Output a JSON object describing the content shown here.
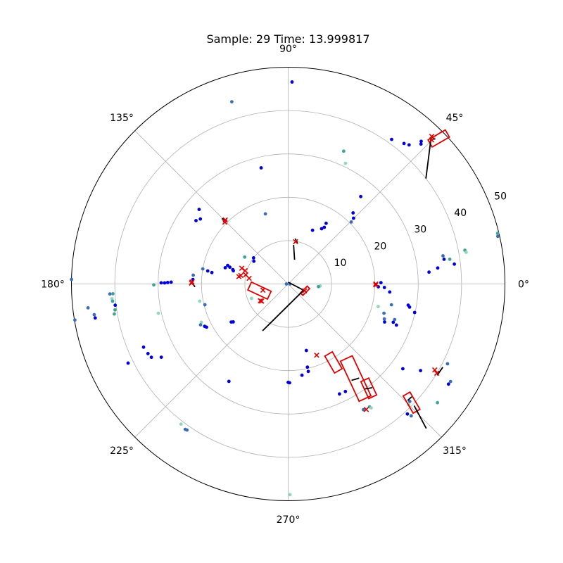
{
  "chart_data": {
    "type": "scatter",
    "projection": "polar",
    "title": "Sample: 29 Time: 13.999817",
    "r_range": [
      0,
      50
    ],
    "r_ticks": [
      10,
      20,
      30,
      40,
      50
    ],
    "r_tick_labels": [
      "10",
      "20",
      "30",
      "40",
      "50"
    ],
    "theta_ticks": [
      0,
      45,
      90,
      135,
      180,
      225,
      270,
      315
    ],
    "theta_tick_labels": [
      "0°",
      "45°",
      "90°",
      "135°",
      "180°",
      "225°",
      "270°",
      "315°"
    ],
    "grid": true,
    "colors": {
      "point_blue": "#0000dd",
      "point_steel": "#3a6fb8",
      "point_teal": "#3fa39a",
      "point_mint": "#8fd8b8",
      "detection": "#e00000",
      "box": "#e00000",
      "line": "#000000",
      "grid": "#b0b0b0"
    },
    "points": [
      {
        "r": 46.6,
        "t": 88.9,
        "c": "blue"
      },
      {
        "r": 44.0,
        "t": 107.2,
        "c": "steel"
      },
      {
        "r": 45.0,
        "t": 47.0,
        "c": "blue"
      },
      {
        "r": 44.5,
        "t": 46.5,
        "c": "blue"
      },
      {
        "r": 42.5,
        "t": 49.0,
        "c": "blue"
      },
      {
        "r": 42.0,
        "t": 50.5,
        "c": "blue"
      },
      {
        "r": 41.0,
        "t": 54.4,
        "c": "blue"
      },
      {
        "r": 33.2,
        "t": 67.3,
        "c": "teal"
      },
      {
        "r": 30.8,
        "t": 64.6,
        "c": "mint"
      },
      {
        "r": 26.2,
        "t": 50.3,
        "c": "blue"
      },
      {
        "r": 22.2,
        "t": 47.6,
        "c": "blue"
      },
      {
        "r": 21.4,
        "t": 45.2,
        "c": "blue"
      },
      {
        "r": 20.4,
        "t": 44.5,
        "c": "steel"
      },
      {
        "r": 16.5,
        "t": 58.0,
        "c": "blue"
      },
      {
        "r": 15.5,
        "t": 57.5,
        "c": "blue"
      },
      {
        "r": 14.9,
        "t": 58.8,
        "c": "blue"
      },
      {
        "r": 13.6,
        "t": 65.6,
        "c": "blue"
      },
      {
        "r": 27.5,
        "t": 103.1,
        "c": "blue"
      },
      {
        "r": 17.0,
        "t": 108.0,
        "c": "steel"
      },
      {
        "r": 26.8,
        "t": 140.1,
        "c": "blue"
      },
      {
        "r": 25.8,
        "t": 145.5,
        "c": "blue"
      },
      {
        "r": 25.2,
        "t": 143.5,
        "c": "blue"
      },
      {
        "r": 11.8,
        "t": 148.3,
        "c": "teal"
      },
      {
        "r": 10.0,
        "t": 143.0,
        "c": "blue"
      },
      {
        "r": 9.5,
        "t": 146.5,
        "c": "blue"
      },
      {
        "r": 14.6,
        "t": 163.0,
        "c": "blue"
      },
      {
        "r": 14.0,
        "t": 164.0,
        "c": "blue"
      },
      {
        "r": 13.2,
        "t": 165.5,
        "c": "blue"
      },
      {
        "r": 13.0,
        "t": 166.5,
        "c": "blue"
      },
      {
        "r": 15.0,
        "t": 165.5,
        "c": "blue"
      },
      {
        "r": 20.0,
        "t": 170.0,
        "c": "steel"
      },
      {
        "r": 18.8,
        "t": 170.8,
        "c": "blue"
      },
      {
        "r": 17.8,
        "t": 171.5,
        "c": "blue"
      },
      {
        "r": 22.0,
        "t": 174.7,
        "c": "steel"
      },
      {
        "r": 22.0,
        "t": 177.3,
        "c": "blue"
      },
      {
        "r": 28.5,
        "t": 179.5,
        "c": "blue"
      },
      {
        "r": 27.8,
        "t": 179.3,
        "c": "blue"
      },
      {
        "r": 27.0,
        "t": 179.1,
        "c": "blue"
      },
      {
        "r": 29.3,
        "t": 179.5,
        "c": "blue"
      },
      {
        "r": 31.0,
        "t": 180.4,
        "c": "teal"
      },
      {
        "r": 50.0,
        "t": 178.8,
        "c": "steel"
      },
      {
        "r": 41.2,
        "t": 183.2,
        "c": "steel"
      },
      {
        "r": 40.5,
        "t": 183.2,
        "c": "teal"
      },
      {
        "r": 40.8,
        "t": 184.8,
        "c": "mint"
      },
      {
        "r": 40.7,
        "t": 185.6,
        "c": "teal"
      },
      {
        "r": 40.2,
        "t": 187.0,
        "c": "blue"
      },
      {
        "r": 40.4,
        "t": 188.5,
        "c": "teal"
      },
      {
        "r": 40.7,
        "t": 189.8,
        "c": "teal"
      },
      {
        "r": 46.5,
        "t": 186.8,
        "c": "steel"
      },
      {
        "r": 45.3,
        "t": 189.0,
        "c": "steel"
      },
      {
        "r": 45.2,
        "t": 190.0,
        "c": "blue"
      },
      {
        "r": 49.9,
        "t": 189.6,
        "c": "steel"
      },
      {
        "r": 30.7,
        "t": 192.7,
        "c": "mint"
      },
      {
        "r": 20.8,
        "t": 191.0,
        "c": "mint"
      },
      {
        "r": 19.8,
        "t": 194.0,
        "c": "steel"
      },
      {
        "r": 21.9,
        "t": 203.8,
        "c": "mint"
      },
      {
        "r": 22.3,
        "t": 205.0,
        "c": "steel"
      },
      {
        "r": 21.6,
        "t": 206.9,
        "c": "blue"
      },
      {
        "r": 21.3,
        "t": 207.9,
        "c": "blue"
      },
      {
        "r": 36.4,
        "t": 203.6,
        "c": "blue"
      },
      {
        "r": 36.1,
        "t": 206.4,
        "c": "blue"
      },
      {
        "r": 35.8,
        "t": 208.2,
        "c": "blue"
      },
      {
        "r": 41.2,
        "t": 206.3,
        "c": "blue"
      },
      {
        "r": 33.8,
        "t": 210.0,
        "c": "blue"
      },
      {
        "r": 15.8,
        "t": 213.8,
        "c": "blue"
      },
      {
        "r": 15.4,
        "t": 214.6,
        "c": "blue"
      },
      {
        "r": 9.1,
        "t": 201.5,
        "c": "mint"
      },
      {
        "r": 26.3,
        "t": 238.7,
        "c": "blue"
      },
      {
        "r": 40.7,
        "t": 232.6,
        "c": "mint"
      },
      {
        "r": 41.1,
        "t": 234.7,
        "c": "steel"
      },
      {
        "r": 41.0,
        "t": 235.3,
        "c": "steel"
      },
      {
        "r": 48.6,
        "t": 270.5,
        "c": "mint"
      },
      {
        "r": 15.9,
        "t": 285.3,
        "c": "blue"
      },
      {
        "r": 19.7,
        "t": 283.0,
        "c": "blue"
      },
      {
        "r": 20.7,
        "t": 282.9,
        "c": "blue"
      },
      {
        "r": 22.7,
        "t": 270.0,
        "c": "blue"
      },
      {
        "r": 22.8,
        "t": 270.8,
        "c": "blue"
      },
      {
        "r": 21.3,
        "t": 278.6,
        "c": "blue"
      },
      {
        "r": 28.0,
        "t": 295.0,
        "c": "blue"
      },
      {
        "r": 28.1,
        "t": 298.0,
        "c": "blue"
      },
      {
        "r": 33.8,
        "t": 300.9,
        "c": "steel"
      },
      {
        "r": 34.0,
        "t": 303.5,
        "c": "teal"
      },
      {
        "r": 34.4,
        "t": 303.8,
        "c": "mint"
      },
      {
        "r": 39.0,
        "t": 316.0,
        "c": "steel"
      },
      {
        "r": 39.3,
        "t": 315.0,
        "c": "mint"
      },
      {
        "r": 40.7,
        "t": 312.5,
        "c": "blue"
      },
      {
        "r": 41.6,
        "t": 313.0,
        "c": "steel"
      },
      {
        "r": 32.9,
        "t": 323.5,
        "c": "blue"
      },
      {
        "r": 36.5,
        "t": 326.8,
        "c": "blue"
      },
      {
        "r": 43.6,
        "t": 328.0,
        "c": "blue"
      },
      {
        "r": 43.7,
        "t": 329.0,
        "c": "steel"
      },
      {
        "r": 44.0,
        "t": 321.5,
        "c": "teal"
      },
      {
        "r": 41.1,
        "t": 333.4,
        "c": "steel"
      },
      {
        "r": 26.7,
        "t": 339.2,
        "c": "blue"
      },
      {
        "r": 25.8,
        "t": 340.0,
        "c": "blue"
      },
      {
        "r": 23.9,
        "t": 338.5,
        "c": "blue"
      },
      {
        "r": 23.6,
        "t": 340.0,
        "c": "steel"
      },
      {
        "r": 25.9,
        "t": 341.5,
        "c": "steel"
      },
      {
        "r": 23.1,
        "t": 343.0,
        "c": "steel"
      },
      {
        "r": 21.4,
        "t": 345.9,
        "c": "mint"
      },
      {
        "r": 24.3,
        "t": 348.6,
        "c": "steel"
      },
      {
        "r": 29.9,
        "t": 347.3,
        "c": "blue"
      },
      {
        "r": 28.5,
        "t": 349.2,
        "c": "blue"
      },
      {
        "r": 28.1,
        "t": 350.0,
        "c": "blue"
      },
      {
        "r": 23.5,
        "t": 355.5,
        "c": "blue"
      },
      {
        "r": 22.2,
        "t": 357.9,
        "c": "blue"
      },
      {
        "r": 21.4,
        "t": 0.8,
        "c": "blue"
      },
      {
        "r": 20.2,
        "t": 359.5,
        "c": "blue"
      },
      {
        "r": 20.8,
        "t": 358.2,
        "c": "blue"
      },
      {
        "r": 7.4,
        "t": 356.3,
        "c": "mint"
      },
      {
        "r": 7.0,
        "t": 355.0,
        "c": "teal"
      },
      {
        "r": 34.7,
        "t": 6.1,
        "c": "blue"
      },
      {
        "r": 32.6,
        "t": 4.8,
        "c": "blue"
      },
      {
        "r": 38.6,
        "t": 6.8,
        "c": "blue"
      },
      {
        "r": 36.3,
        "t": 10.3,
        "c": "steel"
      },
      {
        "r": 36.4,
        "t": 9.0,
        "c": "blue"
      },
      {
        "r": 37.7,
        "t": 8.7,
        "c": "teal"
      },
      {
        "r": 41.5,
        "t": 10.8,
        "c": "teal"
      },
      {
        "r": 41.7,
        "t": 10.1,
        "c": "mint"
      },
      {
        "r": 49.6,
        "t": 12.8,
        "c": "steel"
      },
      {
        "r": 49.7,
        "t": 13.6,
        "c": "teal"
      },
      {
        "r": 0.4,
        "t": 180.0,
        "c": "steel"
      },
      {
        "r": 0.4,
        "t": 0.0,
        "c": "steel"
      }
    ],
    "detections": [
      {
        "r": 20.2,
        "t": 0.0
      },
      {
        "r": 20.2,
        "t": 359.4
      },
      {
        "r": 40.0,
        "t": 329.0
      },
      {
        "r": 39.2,
        "t": 329.6
      },
      {
        "r": 47.5,
        "t": 45.8
      },
      {
        "r": 46.9,
        "t": 45.1
      },
      {
        "r": 9.9,
        "t": 80.1
      },
      {
        "r": 20.4,
        "t": 135.7
      },
      {
        "r": 20.7,
        "t": 134.5
      },
      {
        "r": 11.3,
        "t": 161.3
      },
      {
        "r": 10.4,
        "t": 162.9
      },
      {
        "r": 11.5,
        "t": 171.5
      },
      {
        "r": 11.1,
        "t": 169.8
      },
      {
        "r": 10.0,
        "t": 167.8
      },
      {
        "r": 9.1,
        "t": 171.8
      },
      {
        "r": 22.3,
        "t": 179.5
      },
      {
        "r": 22.2,
        "t": 178.8
      },
      {
        "r": 6.0,
        "t": 193.8
      },
      {
        "r": 7.5,
        "t": 211.1
      },
      {
        "r": 7.3,
        "t": 212.9
      },
      {
        "r": 17.7,
        "t": 291.8
      },
      {
        "r": 4.1,
        "t": 337.4
      },
      {
        "r": 34.1,
        "t": 301.9
      }
    ],
    "boxes": [
      {
        "r": 48.3,
        "t": 44.0,
        "w": 4.6,
        "h": 1.9,
        "a": 30
      },
      {
        "r": 6.8,
        "t": 193.0,
        "w": 2.0,
        "h": 5.0,
        "a": 65
      },
      {
        "r": 4.2,
        "t": 338.0,
        "w": 2.2,
        "h": 0.8,
        "a": 45
      },
      {
        "r": 20.9,
        "t": 300.0,
        "w": 2.0,
        "h": 4.5,
        "a": 30
      },
      {
        "r": 26.8,
        "t": 305.5,
        "w": 3.0,
        "h": 10.2,
        "a": 25
      },
      {
        "r": 30.4,
        "t": 307.7,
        "w": 2.0,
        "h": 4.3,
        "a": 25
      },
      {
        "r": 39.5,
        "t": 316.1,
        "w": 1.8,
        "h": 4.6,
        "a": 30
      }
    ],
    "segments": [
      {
        "r1": 40.0,
        "t1": 37.4,
        "r2": 47.1,
        "t2": 45.6
      },
      {
        "r1": 47.2,
        "t1": 45.0,
        "r2": 47.7,
        "t2": 44.6
      },
      {
        "r1": 9.1,
        "t1": 82.1,
        "r2": 5.8,
        "t2": 75.2
      },
      {
        "r1": 9.7,
        "t1": 77.2,
        "r2": 10.6,
        "t2": 81.3
      },
      {
        "r1": 21.5,
        "t1": 135.5,
        "r2": 20.4,
        "t2": 134.0
      },
      {
        "r1": 21.5,
        "t1": 181.8,
        "r2": 22.2,
        "t2": 179.3
      },
      {
        "r1": 0.4,
        "t1": 88.0,
        "r2": 4.2,
        "t2": 337.6
      },
      {
        "r1": 3.9,
        "t1": 339.7,
        "r2": 12.3,
        "t2": 241.3
      },
      {
        "r1": 40.5,
        "t1": 331.7,
        "r2": 40.3,
        "t2": 328.5
      },
      {
        "r1": 40.4,
        "t1": 316.0,
        "r2": 46.1,
        "t2": 313.7
      },
      {
        "r1": 38.6,
        "t1": 317.6,
        "r2": 38.5,
        "t2": 315.7
      },
      {
        "r1": 26.6,
        "t1": 303.3,
        "r2": 27.2,
        "t2": 307.0
      },
      {
        "r1": 30.0,
        "t1": 306.1,
        "r2": 30.8,
        "t2": 309.0
      }
    ]
  }
}
